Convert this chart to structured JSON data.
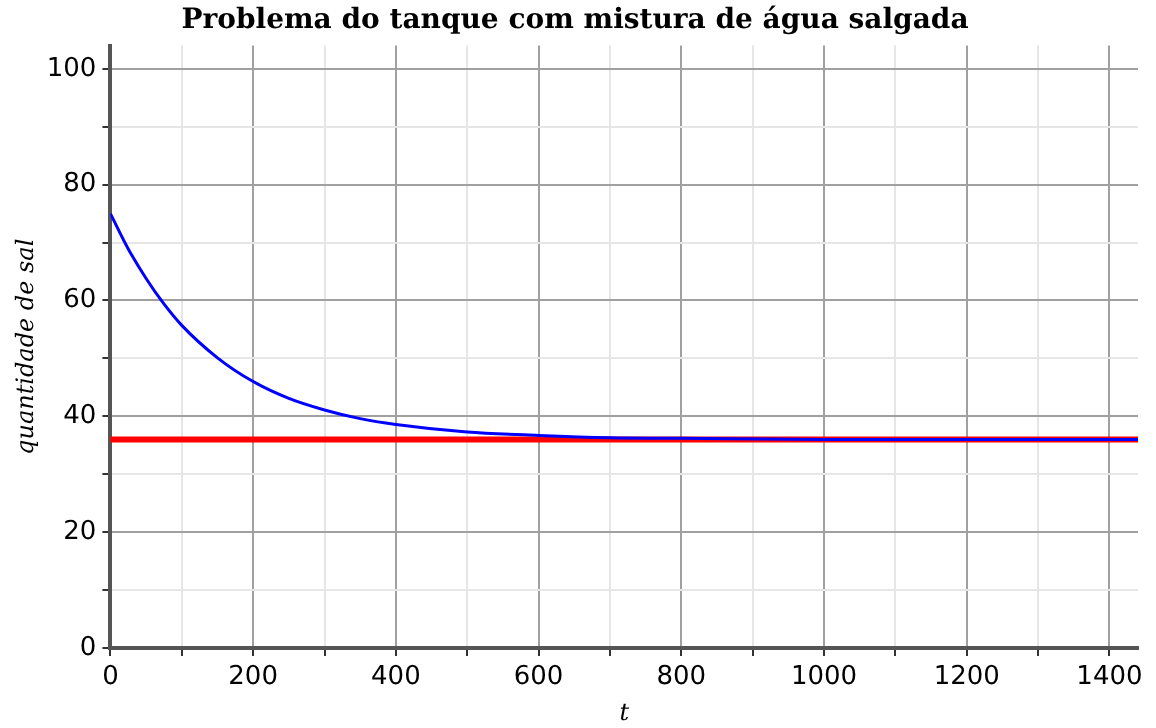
{
  "chart_data": {
    "type": "line",
    "title": "Problema do tanque com mistura de água salgada",
    "xlabel": "t",
    "ylabel": "quantidade de sal",
    "xlim": [
      0,
      1440
    ],
    "ylim": [
      0,
      104
    ],
    "xticks": [
      0,
      {
        "value": 100,
        "label": null
      },
      200,
      {
        "value": 300,
        "label": null
      },
      400,
      {
        "value": 500,
        "label": null
      },
      600,
      {
        "value": 700,
        "label": null
      },
      800,
      {
        "value": 900,
        "label": null
      },
      1000,
      {
        "value": 1100,
        "label": null
      },
      1200,
      {
        "value": 1300,
        "label": null
      },
      1400
    ],
    "yticks": [
      0,
      {
        "value": 10,
        "label": null
      },
      20,
      {
        "value": 30,
        "label": null
      },
      40,
      {
        "value": 50,
        "label": null
      },
      60,
      {
        "value": 70,
        "label": null
      },
      80,
      {
        "value": 90,
        "label": null
      },
      100
    ],
    "grid": true,
    "legend": false,
    "marker": "none",
    "line_style": "solid",
    "x": [
      0,
      25,
      50,
      75,
      100,
      150,
      200,
      250,
      300,
      350,
      400,
      500,
      600,
      700,
      800,
      1000,
      1440
    ],
    "series": [
      {
        "color": "#0000ff",
        "values": [
          75,
          68.9,
          63.8,
          59.4,
          55.7,
          50.1,
          46,
          43.1,
          41.1,
          39.6,
          38.6,
          37.3,
          36.7,
          36.3,
          36.2,
          36,
          36
        ]
      }
    ],
    "ref_lines": [
      {
        "axis": "y",
        "value": 36,
        "color": "#ff0000",
        "line_style": "solid"
      }
    ]
  }
}
